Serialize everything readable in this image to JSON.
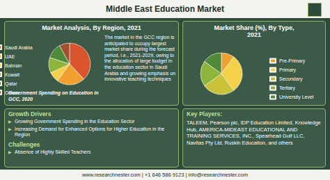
{
  "header": {
    "title": "Middle East Education Market"
  },
  "chart_data": [
    {
      "type": "pie",
      "title": "Market Analysis, By Region, 2021",
      "annotation": "Government Spending on Education in GCC, 2020",
      "categories": [
        "Saudi Arabia",
        "UAE",
        "Bahrain",
        "Kuwait",
        "Qatar",
        "Oman"
      ],
      "values": [
        38,
        22,
        8,
        12,
        12,
        8
      ],
      "colors": [
        "#d9532c",
        "#f0a030",
        "#f5d04a",
        "#8db53c",
        "#4e8a3a",
        "#a0522d"
      ],
      "legend": "left",
      "data_labels": false
    },
    {
      "type": "pie",
      "title": "Market Share (%), By Type, 2021",
      "categories": [
        "Pre-Primary",
        "Primary",
        "Secondary",
        "Tertiary",
        "University Level"
      ],
      "values": [
        10,
        30,
        25,
        20,
        15
      ],
      "colors": [
        "#f0a030",
        "#f5d04a",
        "#c9c23a",
        "#8db53c",
        "#4e8a3a"
      ],
      "legend": "right",
      "data_labels": false
    }
  ],
  "market_text": "The market in the GCC region is anticipated to occupy largest market share during the forecast period, i.e., 2021-2029, owing to the allocation of large budget in the education sector in Saudi Arabia and growing emphasis on innovative teaching techniques",
  "growth_drivers": {
    "title": "Growth Drivers",
    "items": [
      "Growing Government Spending in the Education Sector",
      "Increasing Demand for Enhanced Options for Higher Education in the Region"
    ]
  },
  "challenges": {
    "title": "Challenges",
    "items": [
      "Absence of Highly Skilled Teachers"
    ]
  },
  "key_players": {
    "title": "Key Players:",
    "text": "TALEEM, Pearson plc, IDP Education Limited, Knowledge Hub, AMERICA-MIDEAST EDUCATIONAL AND TRAINING SERVICES, INC., Spearhead Gulf LLC, Navitas Pty Ltd, Ruskin Education, and others"
  },
  "footer": "www.researchnester.com | +1 646 586 9123 | info@researchnester.com"
}
